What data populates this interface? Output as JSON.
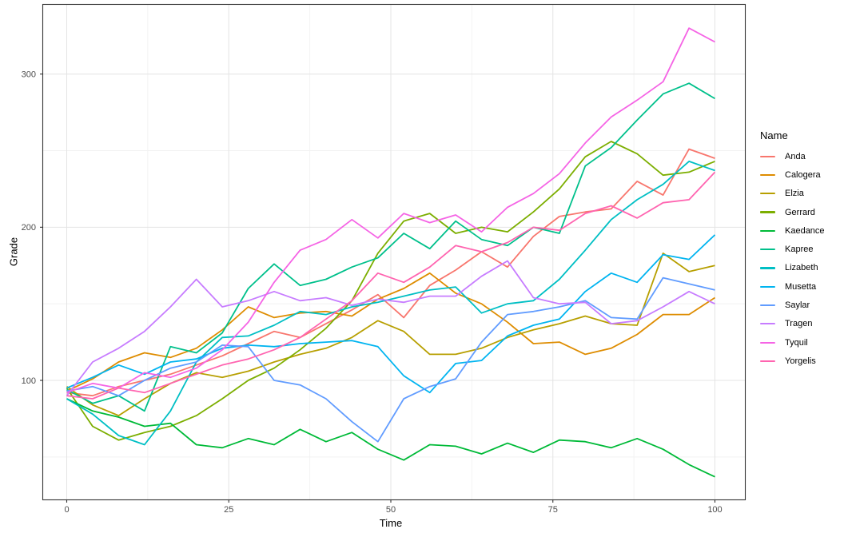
{
  "colors": {
    "background": "#FFFFFF",
    "panel_border": "#333333",
    "grid_major": "#E4E4E4",
    "grid_minor": "#F2F2F2",
    "tick_mark": "#333333",
    "axis_text": "#4D4D4D",
    "title_text": "#000000"
  },
  "chart_data": {
    "type": "line",
    "title": "",
    "xlabel": "Time",
    "ylabel": "Grade",
    "legend_title": "Name",
    "legend_position": "right",
    "grid": true,
    "xlim": [
      -3.7,
      104.7
    ],
    "ylim": [
      22,
      345
    ],
    "x_ticks": [
      0,
      25,
      50,
      75,
      100
    ],
    "y_ticks": [
      100,
      200,
      300
    ],
    "x_minor_ticks": [
      12.5,
      37.5,
      62.5,
      87.5
    ],
    "y_minor_ticks": [
      50,
      150,
      250
    ],
    "x": [
      0,
      4,
      8,
      12,
      16,
      20,
      24,
      28,
      32,
      36,
      40,
      44,
      48,
      52,
      56,
      60,
      64,
      68,
      72,
      76,
      80,
      84,
      88,
      92,
      96,
      100
    ],
    "series": [
      {
        "name": "Anda",
        "color": "#F8766D",
        "values": [
          92,
          90,
          96,
          100,
          104,
          110,
          116,
          124,
          132,
          128,
          137,
          146,
          156,
          141,
          162,
          172,
          184,
          174,
          194,
          207,
          210,
          212,
          230,
          221,
          251,
          245
        ]
      },
      {
        "name": "Calogera",
        "color": "#DE8C00",
        "values": [
          93,
          101,
          112,
          118,
          115,
          121,
          133,
          148,
          141,
          144,
          145,
          142,
          153,
          160,
          170,
          157,
          150,
          138,
          124,
          125,
          117,
          121,
          130,
          143,
          143,
          154
        ]
      },
      {
        "name": "Elzia",
        "color": "#B79F00",
        "values": [
          96,
          84,
          77,
          88,
          98,
          105,
          102,
          106,
          112,
          117,
          121,
          128,
          139,
          132,
          117,
          117,
          121,
          128,
          133,
          137,
          142,
          137,
          136,
          183,
          171,
          175
        ]
      },
      {
        "name": "Gerrard",
        "color": "#7CAE00",
        "values": [
          95,
          70,
          61,
          66,
          70,
          77,
          88,
          100,
          108,
          120,
          134,
          152,
          183,
          204,
          209,
          196,
          200,
          197,
          210,
          225,
          246,
          256,
          248,
          234,
          236,
          243
        ]
      },
      {
        "name": "Kaedance",
        "color": "#00BA38",
        "values": [
          88,
          80,
          76,
          70,
          72,
          58,
          56,
          62,
          58,
          68,
          60,
          66,
          55,
          48,
          58,
          57,
          52,
          59,
          53,
          61,
          60,
          56,
          62,
          55,
          45,
          37
        ]
      },
      {
        "name": "Kapree",
        "color": "#00C08B",
        "values": [
          94,
          85,
          90,
          80,
          122,
          118,
          131,
          160,
          176,
          162,
          166,
          174,
          180,
          196,
          186,
          204,
          192,
          188,
          200,
          196,
          240,
          252,
          270,
          287,
          294,
          284
        ]
      },
      {
        "name": "Lizabeth",
        "color": "#00BFC4",
        "values": [
          88,
          78,
          64,
          58,
          80,
          112,
          128,
          129,
          136,
          145,
          143,
          148,
          151,
          155,
          159,
          161,
          144,
          150,
          152,
          166,
          185,
          205,
          218,
          228,
          243,
          237
        ]
      },
      {
        "name": "Musetta",
        "color": "#00B4F0",
        "values": [
          95,
          102,
          110,
          104,
          112,
          114,
          121,
          123,
          122,
          124,
          125,
          126,
          122,
          103,
          92,
          111,
          113,
          129,
          136,
          140,
          158,
          170,
          164,
          182,
          179,
          195
        ]
      },
      {
        "name": "Saylar",
        "color": "#619CFF",
        "values": [
          93,
          96,
          90,
          100,
          108,
          112,
          123,
          122,
          100,
          97,
          88,
          73,
          60,
          88,
          96,
          101,
          125,
          143,
          145,
          148,
          152,
          141,
          140,
          167,
          163,
          159
        ]
      },
      {
        "name": "Tragen",
        "color": "#C77CFF",
        "values": [
          90,
          112,
          121,
          132,
          148,
          166,
          148,
          152,
          158,
          152,
          154,
          149,
          153,
          151,
          155,
          155,
          168,
          178,
          154,
          150,
          151,
          137,
          139,
          148,
          158,
          150
        ]
      },
      {
        "name": "Tyquil",
        "color": "#F564E5",
        "values": [
          92,
          98,
          95,
          105,
          102,
          108,
          120,
          138,
          164,
          185,
          192,
          205,
          193,
          209,
          203,
          208,
          197,
          213,
          222,
          235,
          255,
          272,
          283,
          295,
          330,
          321
        ]
      },
      {
        "name": "Yorgelis",
        "color": "#FF64B0",
        "values": [
          90,
          88,
          95,
          92,
          98,
          104,
          110,
          114,
          120,
          128,
          140,
          152,
          170,
          164,
          174,
          188,
          184,
          190,
          200,
          198,
          209,
          214,
          206,
          216,
          218,
          236
        ]
      }
    ]
  }
}
